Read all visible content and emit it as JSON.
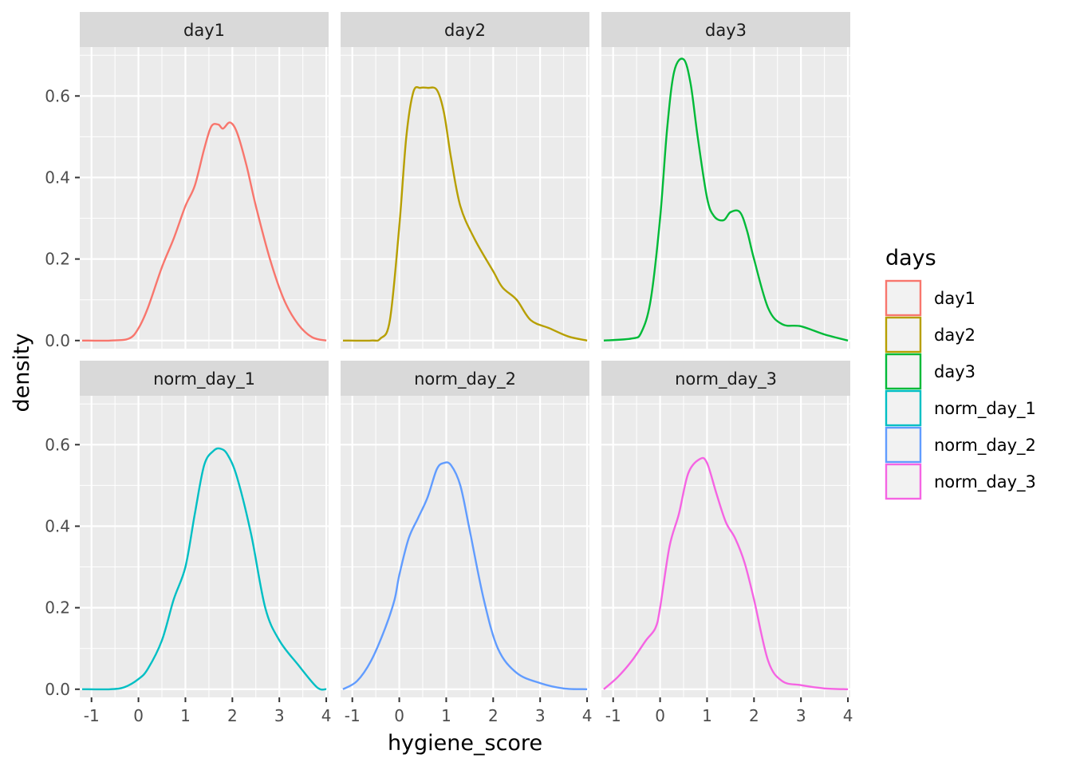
{
  "chart_data": {
    "type": "line",
    "facet": "wrap",
    "xlabel": "hygiene_score",
    "ylabel": "density",
    "xlim": [
      -1.25,
      4.05
    ],
    "ylim": [
      -0.02,
      0.72
    ],
    "x_ticks": [
      "-1",
      "0",
      "1",
      "2",
      "3",
      "4"
    ],
    "x_tick_values": [
      -1,
      0,
      1,
      2,
      3,
      4
    ],
    "y_ticks": [
      "0.0",
      "0.2",
      "0.4",
      "0.6"
    ],
    "y_tick_values": [
      0,
      0.2,
      0.4,
      0.6
    ],
    "grid": true,
    "legend": {
      "title": "days",
      "position": "right",
      "entries": [
        "day1",
        "day2",
        "day3",
        "norm_day_1",
        "norm_day_2",
        "norm_day_3"
      ]
    },
    "panels": [
      {
        "name": "day1",
        "color": "#F8766D",
        "x": [
          -1.2,
          -0.6,
          -0.2,
          0.0,
          0.2,
          0.5,
          0.75,
          1.0,
          1.2,
          1.4,
          1.55,
          1.7,
          1.8,
          1.95,
          2.1,
          2.3,
          2.5,
          2.8,
          3.1,
          3.4,
          3.7,
          4.0
        ],
        "y": [
          0.0,
          0.0,
          0.005,
          0.03,
          0.08,
          0.18,
          0.25,
          0.33,
          0.38,
          0.47,
          0.525,
          0.53,
          0.52,
          0.535,
          0.51,
          0.43,
          0.33,
          0.2,
          0.1,
          0.04,
          0.008,
          0.0
        ]
      },
      {
        "name": "day2",
        "color": "#B79F00",
        "x": [
          -1.2,
          -0.6,
          -0.4,
          -0.2,
          0.0,
          0.15,
          0.3,
          0.45,
          0.6,
          0.8,
          0.95,
          1.1,
          1.3,
          1.6,
          2.0,
          2.2,
          2.5,
          2.8,
          3.2,
          3.6,
          4.0
        ],
        "y": [
          0.0,
          0.0,
          0.005,
          0.05,
          0.28,
          0.5,
          0.61,
          0.62,
          0.62,
          0.615,
          0.56,
          0.45,
          0.33,
          0.25,
          0.17,
          0.13,
          0.1,
          0.05,
          0.03,
          0.01,
          0.0
        ]
      },
      {
        "name": "day3",
        "color": "#00BA38",
        "x": [
          -1.2,
          -0.6,
          -0.4,
          -0.2,
          0.0,
          0.15,
          0.3,
          0.5,
          0.65,
          0.8,
          1.0,
          1.15,
          1.35,
          1.5,
          1.7,
          1.85,
          2.0,
          2.3,
          2.6,
          3.0,
          3.5,
          4.0
        ],
        "y": [
          0.0,
          0.005,
          0.02,
          0.1,
          0.3,
          0.52,
          0.66,
          0.69,
          0.63,
          0.5,
          0.35,
          0.305,
          0.295,
          0.315,
          0.315,
          0.27,
          0.2,
          0.08,
          0.04,
          0.035,
          0.015,
          0.0
        ]
      },
      {
        "name": "norm_day_1",
        "color": "#00BFC4",
        "x": [
          -1.2,
          -0.6,
          -0.3,
          0.0,
          0.2,
          0.5,
          0.75,
          1.0,
          1.2,
          1.4,
          1.6,
          1.75,
          1.9,
          2.1,
          2.4,
          2.7,
          3.0,
          3.4,
          3.8,
          4.0
        ],
        "y": [
          0.0,
          0.0,
          0.005,
          0.025,
          0.05,
          0.12,
          0.22,
          0.3,
          0.43,
          0.55,
          0.585,
          0.59,
          0.575,
          0.52,
          0.38,
          0.2,
          0.12,
          0.06,
          0.005,
          0.0
        ]
      },
      {
        "name": "norm_day_2",
        "color": "#619CFF",
        "x": [
          -1.2,
          -0.9,
          -0.6,
          -0.3,
          -0.1,
          0.0,
          0.2,
          0.4,
          0.6,
          0.8,
          0.95,
          1.1,
          1.3,
          1.5,
          1.8,
          2.1,
          2.5,
          3.0,
          3.5,
          4.0
        ],
        "y": [
          0.0,
          0.02,
          0.07,
          0.15,
          0.22,
          0.28,
          0.37,
          0.42,
          0.47,
          0.54,
          0.555,
          0.55,
          0.5,
          0.39,
          0.22,
          0.1,
          0.04,
          0.015,
          0.002,
          0.0
        ]
      },
      {
        "name": "norm_day_3",
        "color": "#F564E3",
        "x": [
          -1.2,
          -0.9,
          -0.6,
          -0.3,
          -0.1,
          0.0,
          0.2,
          0.4,
          0.6,
          0.85,
          1.0,
          1.2,
          1.4,
          1.6,
          1.8,
          2.0,
          2.3,
          2.6,
          3.0,
          3.5,
          4.0
        ],
        "y": [
          0.0,
          0.03,
          0.07,
          0.12,
          0.15,
          0.2,
          0.35,
          0.43,
          0.53,
          0.565,
          0.555,
          0.48,
          0.41,
          0.37,
          0.31,
          0.22,
          0.07,
          0.02,
          0.01,
          0.002,
          0.0
        ]
      }
    ]
  }
}
